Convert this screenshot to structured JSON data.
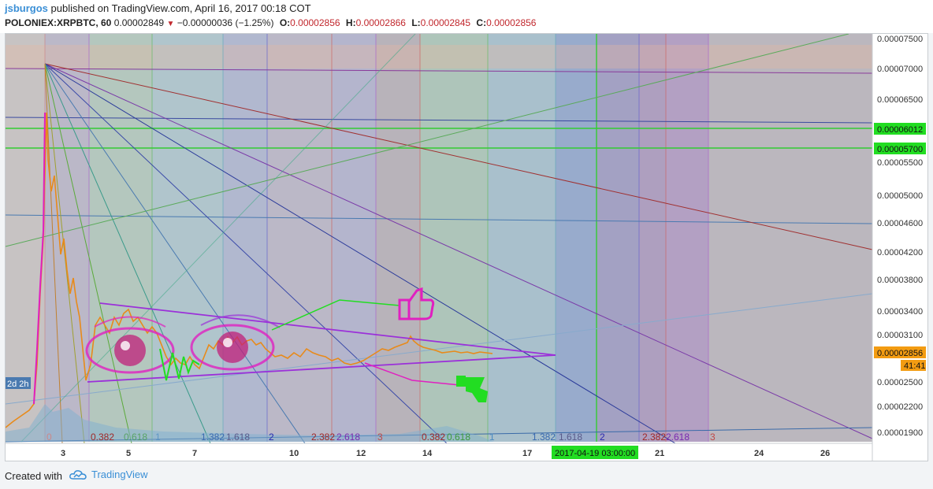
{
  "header": {
    "author": "jsburgos",
    "published_text": "published on TradingView.com, April 16, 2017 00:18 COT",
    "symbol": "POLONIEX:XRPBTC, 60",
    "last_price": "0.00002849",
    "change": "−0.00000036 (−1.25%)",
    "open_label": "O:",
    "open": "0.00002856",
    "high_label": "H:",
    "high": "0.00002866",
    "low_label": "L:",
    "low": "0.00002845",
    "close_label": "C:",
    "close": "0.00002856"
  },
  "price_axis": {
    "ticks": [
      "0.00007500",
      "0.00007000",
      "0.00006500",
      "0.00005500",
      "0.00005000",
      "0.00004600",
      "0.00004200",
      "0.00003800",
      "0.00003400",
      "0.00003100",
      "0.00002500",
      "0.00002200",
      "0.00001900"
    ],
    "green_labels": [
      "0.00006012",
      "0.00005700"
    ],
    "current_price": "0.00002856",
    "countdown": "41:41"
  },
  "time_axis": {
    "ticks": [
      "3",
      "5",
      "7",
      "10",
      "12",
      "14",
      "17",
      "21",
      "24",
      "26"
    ],
    "cursor_label": "2017-04-19 03:00:00"
  },
  "fib_labels": {
    "row1": [
      "0",
      "0.382",
      "0.618",
      "1",
      "1.382",
      "1.618",
      "2",
      "2.382",
      "2.618",
      "3"
    ],
    "row2": [
      "0.382",
      "0.618",
      "1",
      "1.382",
      "1.618",
      "2",
      "2.382",
      "2.618",
      "3"
    ]
  },
  "left_tag": "2d 2h",
  "colors": {
    "accent_blue": "#3a8fd6",
    "price_tag": "#f39c12",
    "green_level": "#33cc33",
    "triangle": "#9b30d9",
    "drawing_pink": "#e020c0",
    "candles": "#e88a1a"
  },
  "footer": {
    "created_with": "Created with",
    "brand": "TradingView"
  }
}
